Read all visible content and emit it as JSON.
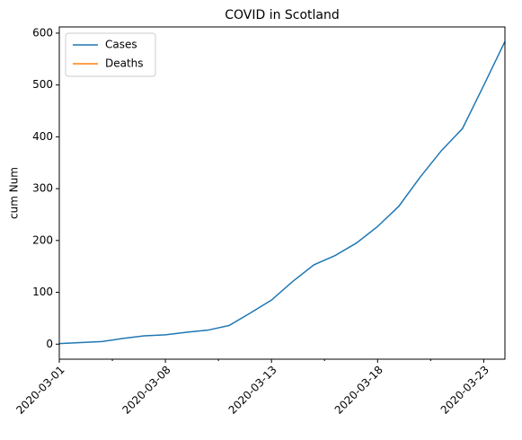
{
  "chart_data": {
    "type": "line",
    "title": "COVID in Scotland",
    "y_label": "cum Num",
    "categories": [
      "2020-03-01",
      null,
      null,
      null,
      null,
      "2020-03-08",
      null,
      null,
      null,
      null,
      "2020-03-13",
      null,
      null,
      null,
      null,
      "2020-03-18",
      null,
      null,
      null,
      null,
      "2020-03-23",
      null
    ],
    "series": [
      {
        "name": "Cases",
        "color": "#1f77b4",
        "values": [
          1,
          3,
          5,
          11,
          16,
          18,
          23,
          27,
          36,
          60,
          85,
          121,
          153,
          171,
          195,
          227,
          266,
          322,
          373,
          416,
          499,
          584
        ]
      },
      {
        "name": "Deaths",
        "color": "#ff7f0e",
        "values": [
          null,
          null,
          null,
          null,
          null,
          null,
          null,
          null,
          null,
          null,
          null,
          null,
          null,
          null,
          null,
          null,
          null,
          null,
          null,
          null,
          null,
          null
        ]
      }
    ],
    "ylim": [
      -29,
      612
    ],
    "yticks": [
      0,
      100,
      200,
      300,
      400,
      500,
      600
    ],
    "grid": false,
    "legend": "upper left"
  }
}
